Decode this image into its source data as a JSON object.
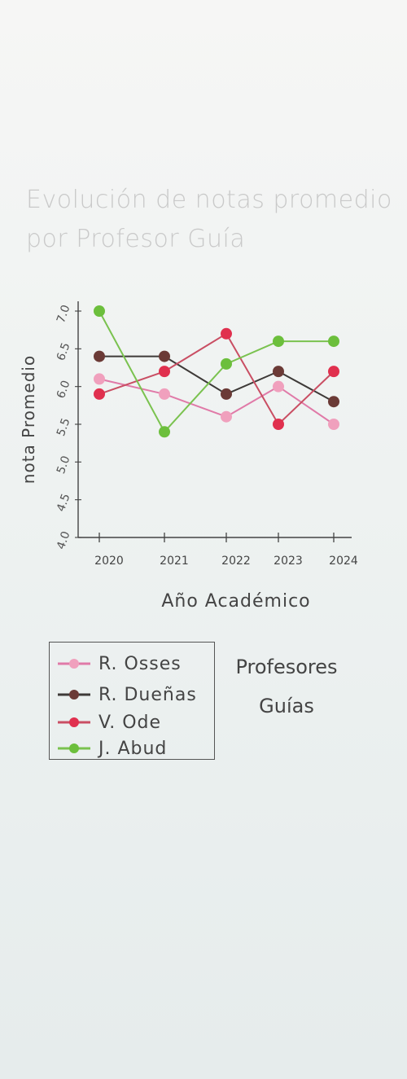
{
  "title_lines": [
    "Evolución de notas promedio",
    "por Profesor Guía"
  ],
  "chart_data": {
    "type": "line",
    "title": "Evolución de notas promedio por Profesor Guía",
    "xlabel": "Año Académico",
    "ylabel": "nota Promedio",
    "categories": [
      "2020",
      "2021",
      "2022",
      "2023",
      "2024"
    ],
    "y_ticks": [
      "4.0",
      "4.5",
      "5.0",
      "5.5",
      "6.0",
      "6.5",
      "7.0"
    ],
    "ylim": [
      4.0,
      7.0
    ],
    "grid": false,
    "legend_title_lines": [
      "Profesores",
      "Guías"
    ],
    "series": [
      {
        "name": "R. Osses",
        "color": "#f0a0bd",
        "line_color": "#e07aa8",
        "values": [
          6.1,
          5.9,
          5.6,
          6.0,
          5.5
        ]
      },
      {
        "name": "R. Dueñas",
        "color": "#6b3a36",
        "line_color": "#3e3a38",
        "values": [
          6.4,
          6.4,
          5.9,
          6.2,
          5.8
        ]
      },
      {
        "name": "V. Ode",
        "color": "#e0304e",
        "line_color": "#c94e63",
        "values": [
          5.9,
          6.2,
          6.7,
          5.5,
          6.2
        ]
      },
      {
        "name": "J. Abud",
        "color": "#6cbf3c",
        "line_color": "#7ac24f",
        "values": [
          7.0,
          5.4,
          6.3,
          6.6,
          6.6
        ]
      }
    ]
  }
}
